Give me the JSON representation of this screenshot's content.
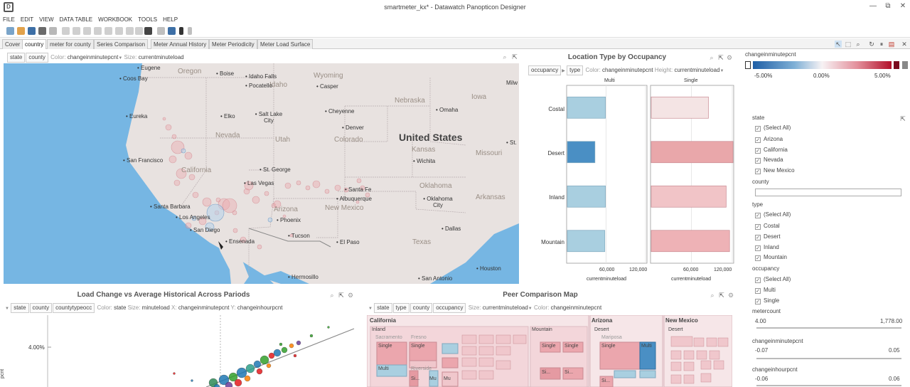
{
  "window": {
    "title": "smartmeter_kx* - Datawatch Panopticon Designer",
    "logo": "D",
    "controls": [
      "—",
      "⧉",
      "✕"
    ]
  },
  "menu": [
    "FILE",
    "EDIT",
    "VIEW",
    "DATA TABLE",
    "WORKBOOK",
    "TOOLS",
    "HELP"
  ],
  "tabs": [
    "Cover",
    "country",
    "meter for county",
    "Series Comparison",
    "Meter Annual History",
    "Meter Periodicity",
    "Meter Load Surface"
  ],
  "map_panel": {
    "chips": [
      "state",
      "county"
    ],
    "color_label": "Color:",
    "color_value": "changeinminutepcnt",
    "size_label": "Size:",
    "size_value": "currentminuteload",
    "labels": {
      "states": [
        "Oregon",
        "Idaho",
        "Wyoming",
        "Nevada",
        "Utah",
        "Colorado",
        "California",
        "Arizona",
        "New Mexico",
        "Texas",
        "Oklahoma",
        "Kansas",
        "Missouri",
        "Arkansas",
        "Nebraska",
        "Iowa"
      ],
      "country": "United States",
      "cities": [
        "Eugene",
        "Coos Bay",
        "Boise",
        "Idaho Falls",
        "Pocatello",
        "Casper",
        "Eureka",
        "Elko",
        "Salt Lake City",
        "Cheyenne",
        "Denver",
        "Omaha",
        "San Francisco",
        "St. George",
        "Las Vegas",
        "Wichita",
        "Santa Fe",
        "Albuquerque",
        "Oklahoma City",
        "Santa Barbara",
        "Los Angeles",
        "San Diego",
        "Phoenix",
        "Tucson",
        "Dallas",
        "Ensenada",
        "El Paso",
        "Hermosillo",
        "San Antonio",
        "Houston",
        "Milw",
        "St."
      ]
    }
  },
  "bar_panel": {
    "title": "Location Type by Occupancy",
    "chips": [
      "occupancy",
      "type"
    ],
    "color_label": "Color:",
    "color_value": "changeinminutepcnt",
    "height_label": "Height:",
    "height_value": "currentminuteload",
    "columns": [
      "Multi",
      "Single"
    ],
    "categories": [
      "Costal",
      "Desert",
      "Inland",
      "Mountain"
    ],
    "ticks": [
      "60,000",
      "120,000"
    ],
    "axis_title": "currentminuteload"
  },
  "chart_data": {
    "type": "bar",
    "categories": [
      "Costal",
      "Desert",
      "Inland",
      "Mountain"
    ],
    "series": [
      {
        "name": "Multi",
        "values": [
          58000,
          42000,
          58000,
          57000
        ],
        "colors": [
          "#a9cfe0",
          "#4a8fc4",
          "#a9cfe0",
          "#a9cfe0"
        ]
      },
      {
        "name": "Single",
        "values": [
          84000,
          120000,
          110000,
          115000
        ],
        "colors": [
          "#f4e4e4",
          "#e9a7aa",
          "#f1c4c7",
          "#eeb2b6"
        ]
      }
    ],
    "xlim": [
      0,
      120000
    ]
  },
  "legend": {
    "title": "changeinminutepcnt",
    "min": "-5.00%",
    "mid": "0.00%",
    "max": "5.00%",
    "neg_color": "#1f5fa6",
    "pos_color": "#b3102a"
  },
  "filters": {
    "state": {
      "label": "state",
      "items": [
        "(Select All)",
        "Arizona",
        "California",
        "Nevada",
        "New Mexico"
      ]
    },
    "county": {
      "label": "county"
    },
    "type": {
      "label": "type",
      "items": [
        "(Select All)",
        "Costal",
        "Desert",
        "Inland",
        "Mountain"
      ]
    },
    "occupancy": {
      "label": "occupancy",
      "items": [
        "(Select All)",
        "Multi",
        "Single"
      ]
    },
    "meter": {
      "label": "metercount",
      "min": "4.00",
      "max": "1,778.00"
    },
    "cmp": {
      "label": "changeinminutepcnt",
      "min": "-0.07",
      "max": "0.05"
    },
    "chp": {
      "label": "changeinhourpcnt",
      "min": "-0.06",
      "max": "0.06"
    }
  },
  "scatter_panel": {
    "title": "Load Change vs Average Historical Across Pariods",
    "chips": [
      "state",
      "county",
      "countytypeocc"
    ],
    "color_label": "Color:",
    "color_value": "state",
    "size_label": "Size:",
    "size_value": "minuteload",
    "x_label": "X:",
    "x_value": "changeinminutepcnt",
    "y_label": "Y:",
    "y_value": "changeinhourpcnt",
    "y_tick": "4.00%",
    "y_axis_fragment": "pcnt"
  },
  "treemap_panel": {
    "title": "Peer Comparison Map",
    "chips": [
      "state",
      "type",
      "county",
      "occupancy"
    ],
    "size_label": "Size:",
    "size_value": "currentminuteload",
    "color_label": "Color:",
    "color_value": "changeinminutepcnt",
    "groups": [
      "California",
      "Arizona",
      "New Mexico"
    ],
    "subgroups": [
      "Inland",
      "Mountain",
      "Desert",
      "Desert"
    ],
    "cells": [
      "Single",
      "Single",
      "Multi",
      "Single",
      "Single",
      "Single",
      "Multi",
      "Si...",
      "Mu",
      "Si...",
      "Mu",
      "Si...",
      "Sacramento",
      "Fresno",
      "Riverside",
      "Mariposa",
      "Si...",
      "Mu"
    ]
  }
}
